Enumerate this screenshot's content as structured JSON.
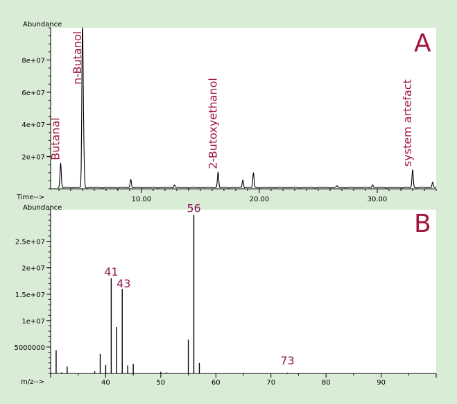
{
  "chart_data": [
    {
      "panel": "A",
      "type": "line",
      "ylabel": "Abundance",
      "xlabel": "Time-->",
      "xlim": [
        2.3,
        35.0
      ],
      "ylim": [
        0,
        100000000
      ],
      "x_ticks": [
        10,
        20,
        30
      ],
      "x_tick_labels": [
        "10.00",
        "20.00",
        "30.00"
      ],
      "y_ticks": [
        20000000,
        40000000,
        60000000,
        80000000
      ],
      "y_tick_labels": [
        "2e+07",
        "4e+07",
        "6e+07",
        "8e+07"
      ],
      "grid": false,
      "peaks": [
        {
          "x": 3.15,
          "y": 15000000
        },
        {
          "x": 5.0,
          "y": 98000000
        },
        {
          "x": 5.1,
          "y": 22000000
        },
        {
          "x": 9.1,
          "y": 5000000
        },
        {
          "x": 12.8,
          "y": 1800000
        },
        {
          "x": 16.5,
          "y": 9500000
        },
        {
          "x": 18.6,
          "y": 4800000
        },
        {
          "x": 19.5,
          "y": 9000000
        },
        {
          "x": 26.6,
          "y": 1000000
        },
        {
          "x": 29.6,
          "y": 1800000
        },
        {
          "x": 33.0,
          "y": 11000000
        },
        {
          "x": 34.7,
          "y": 3500000
        }
      ],
      "annotations": [
        {
          "text": "Butanal",
          "x": 3.15,
          "y": 16000000
        },
        {
          "text": "n-Butanol",
          "x": 5.0,
          "y": 63000000
        },
        {
          "text": "2-Butoxyethanol",
          "x": 16.5,
          "y": 10500000
        },
        {
          "text": "system artefact",
          "x": 33.0,
          "y": 12000000
        }
      ]
    },
    {
      "panel": "B",
      "type": "bar",
      "ylabel": "Abundance",
      "xlabel": "m/z-->",
      "xlim": [
        30,
        100
      ],
      "ylim": [
        0,
        31000000
      ],
      "x_ticks": [
        40,
        50,
        60,
        70,
        80,
        90
      ],
      "x_tick_labels": [
        "40",
        "50",
        "60",
        "70",
        "80",
        "90"
      ],
      "y_ticks": [
        5000000,
        10000000,
        15000000,
        20000000,
        25000000
      ],
      "y_tick_labels": [
        "5000000",
        "1e+07",
        "1.5e+07",
        "2e+07",
        "2.5e+07"
      ],
      "grid": false,
      "x": [
        31,
        32,
        33,
        38,
        39,
        40,
        41,
        42,
        43,
        44,
        45,
        50,
        51,
        55,
        56,
        57,
        73
      ],
      "values": [
        4400000,
        200000,
        1300000,
        400000,
        3700000,
        1600000,
        18000000,
        8800000,
        16000000,
        1500000,
        1800000,
        300000,
        200000,
        6400000,
        30000000,
        2000000,
        150000
      ],
      "annotations": [
        {
          "text": "56",
          "x": 56,
          "y": 30000000
        },
        {
          "text": "41",
          "x": 41,
          "y": 18000000
        },
        {
          "text": "43",
          "x": 43,
          "y": 16000000
        },
        {
          "text": "73",
          "x": 73,
          "y": 150000
        }
      ]
    }
  ],
  "colors": {
    "background": "#d9ecd6",
    "panel_a_plot": "#ffffff",
    "panel_b_plot": "#ffffff",
    "trace": "#000000",
    "label_red": "#a0163c",
    "label_purple": "#8c1455"
  }
}
